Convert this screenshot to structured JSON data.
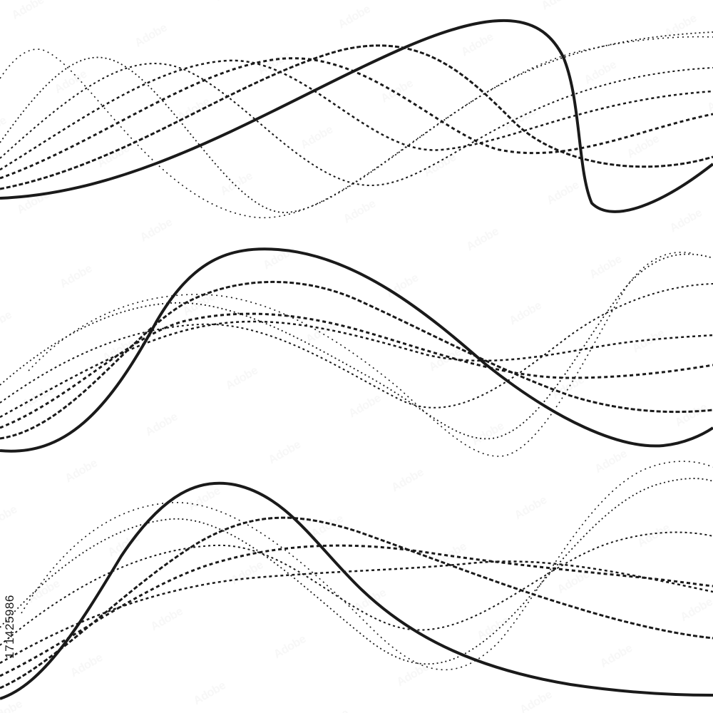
{
  "image": {
    "background": "#ffffff",
    "line_color": "#1a1a1a",
    "watermark_color": "#e6e6e6",
    "side_identifier": "171425986",
    "wave_groups": [
      {
        "name": "top",
        "lines": 7
      },
      {
        "name": "middle",
        "lines": 7
      },
      {
        "name": "bottom",
        "lines": 7
      }
    ]
  }
}
